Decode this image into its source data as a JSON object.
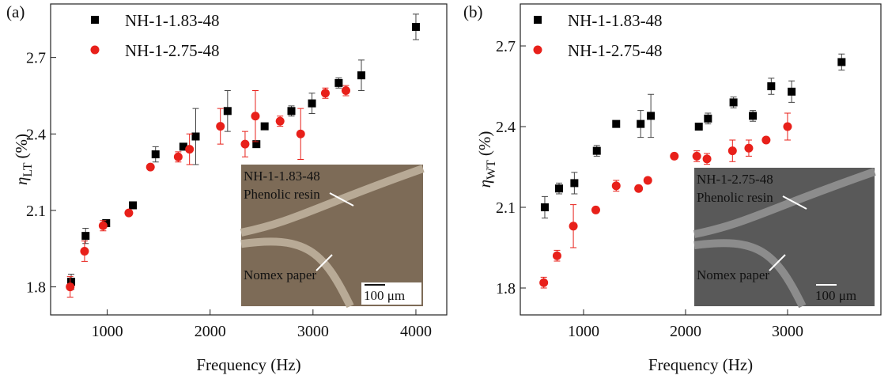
{
  "chart_data": [
    {
      "type": "scatter",
      "panel_label": "(a)",
      "xlabel": "Frequency (Hz)",
      "ylabel_symbol": "η",
      "ylabel_subscript": "LT",
      "ylabel_unit": "(%)",
      "xlim": [
        450,
        4300
      ],
      "ylim": [
        1.69,
        2.91
      ],
      "xticks": [
        1000,
        2000,
        3000,
        4000
      ],
      "yticks": [
        1.8,
        2.1,
        2.4,
        2.7
      ],
      "legend": "upper left",
      "series": [
        {
          "name": "NH-1-1.83-48",
          "color": "#000000",
          "marker": "square",
          "x": [
            650,
            790,
            990,
            1250,
            1470,
            1740,
            1860,
            2170,
            2450,
            2530,
            2790,
            2990,
            3250,
            3470,
            4000
          ],
          "values": [
            1.82,
            2.0,
            2.05,
            2.12,
            2.32,
            2.35,
            2.39,
            2.49,
            2.36,
            2.43,
            2.49,
            2.52,
            2.6,
            2.63,
            2.82
          ],
          "errors": [
            0.03,
            0.03,
            0.01,
            0.01,
            0.03,
            0.01,
            0.11,
            0.08,
            0.01,
            0.01,
            0.02,
            0.04,
            0.02,
            0.06,
            0.05
          ]
        },
        {
          "name": "NH-1-2.75-48",
          "color": "#e8201a",
          "marker": "circle",
          "x": [
            640,
            780,
            960,
            1210,
            1420,
            1690,
            1800,
            2100,
            2340,
            2440,
            2680,
            2880,
            3120,
            3320
          ],
          "values": [
            1.8,
            1.94,
            2.04,
            2.09,
            2.27,
            2.31,
            2.34,
            2.43,
            2.36,
            2.47,
            2.45,
            2.4,
            2.56,
            2.57
          ],
          "errors": [
            0.04,
            0.04,
            0.02,
            0.01,
            0.01,
            0.02,
            0.06,
            0.07,
            0.05,
            0.1,
            0.02,
            0.1,
            0.02,
            0.02
          ]
        }
      ],
      "inset": {
        "label": "NH-1-1.83-48",
        "annotations": [
          "Phenolic resin",
          "Nomex paper"
        ],
        "scale_bar": "100 μm"
      }
    },
    {
      "type": "scatter",
      "panel_label": "(b)",
      "xlabel": "Frequency (Hz)",
      "ylabel_symbol": "η",
      "ylabel_subscript": "WT",
      "ylabel_unit": "(%)",
      "xlim": [
        380,
        3915
      ],
      "ylim": [
        1.7,
        2.856
      ],
      "xticks": [
        1000,
        2000,
        3000
      ],
      "yticks": [
        1.8,
        2.1,
        2.4,
        2.7
      ],
      "legend": "upper left",
      "series": [
        {
          "name": "NH-1-1.83-48",
          "color": "#000000",
          "marker": "square",
          "x": [
            620,
            760,
            910,
            1130,
            1320,
            1560,
            1660,
            2130,
            2220,
            2470,
            2660,
            2840,
            3040,
            3530
          ],
          "values": [
            2.1,
            2.17,
            2.19,
            2.31,
            2.41,
            2.41,
            2.44,
            2.4,
            2.43,
            2.49,
            2.44,
            2.55,
            2.53,
            2.64
          ],
          "errors": [
            0.04,
            0.02,
            0.04,
            0.02,
            0.01,
            0.05,
            0.08,
            0.01,
            0.02,
            0.02,
            0.02,
            0.03,
            0.04,
            0.03
          ]
        },
        {
          "name": "NH-1-2.75-48",
          "color": "#e8201a",
          "marker": "circle",
          "x": [
            610,
            740,
            900,
            1120,
            1320,
            1540,
            1630,
            1890,
            2110,
            2210,
            2460,
            2620,
            2790,
            3000
          ],
          "values": [
            1.82,
            1.92,
            2.03,
            2.09,
            2.18,
            2.17,
            2.2,
            2.29,
            2.29,
            2.28,
            2.31,
            2.32,
            2.35,
            2.4
          ],
          "errors": [
            0.02,
            0.02,
            0.08,
            0.01,
            0.02,
            0.01,
            0.01,
            0.01,
            0.02,
            0.02,
            0.04,
            0.03,
            0.01,
            0.05
          ]
        }
      ],
      "inset": {
        "label": "NH-1-2.75-48",
        "annotations": [
          "Phenolic resin",
          "Nomex paper"
        ],
        "scale_bar": "100 μm"
      }
    }
  ]
}
